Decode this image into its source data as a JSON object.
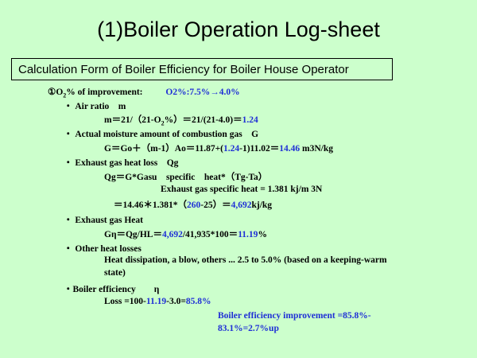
{
  "title": "(1)Boiler Operation Log-sheet",
  "subtitle": "Calculation Form of Boiler Efficiency for Boiler House Operator",
  "o2": {
    "marker": "①",
    "label_pre": "O",
    "label_sub": "2",
    "label_post": "% of improvement:",
    "value": "O2%:7.5%→4.0%"
  },
  "air_ratio": {
    "heading": "・ Air ratio　m",
    "f_a": "m＝21/（21-O",
    "f_sub": "2",
    "f_b": "%）＝21/(21-4.0)＝",
    "result": "1.24"
  },
  "moisture": {
    "heading": "・ Actual moisture amount of combustion gas　G",
    "f_a": "G＝Go＋（m-1）Ao＝11.87+(",
    "f_b": "1.24",
    "f_c": "-1)11.02＝",
    "result": "14.46",
    "unit": " m3N/kg"
  },
  "heat_loss": {
    "heading": "・ Exhaust gas heat loss　Qg",
    "formula": "Qg＝G*Gasu　specific　heat*（Tg-Ta）",
    "specific_heat": "Exhaust gas specific heat = 1.381 kj/m 3N",
    "calc_a": "＝14.46＊1.381*（",
    "calc_b": "260",
    "calc_c": "-25）＝",
    "calc_result": "4,692",
    "calc_unit": "kj/kg"
  },
  "exhaust_heat": {
    "heading": "・ Exhaust gas Heat",
    "f_a": "Gη＝Qg/HL＝",
    "f_b": "4,692",
    "f_c": "/41,935*100＝",
    "result": "11.19",
    "unit": "%"
  },
  "other_losses": {
    "heading": "・ Other heat losses",
    "line1": "Heat dissipation, a blow, others ... 2.5 to 5.0% (based on a keeping-warm",
    "line2": "state)"
  },
  "efficiency": {
    "heading": "・Boiler efficiency　　η",
    "f_a": "Loss =100-",
    "f_b": "11.19",
    "f_c": "-3.0=",
    "result": "85.8%",
    "improvement_line1": "Boiler efficiency improvement =85.8%-",
    "improvement_line2": "83.1%=2.7%up"
  },
  "colors": {
    "background": "#ccffcc",
    "highlight": "#1f2fd6"
  }
}
